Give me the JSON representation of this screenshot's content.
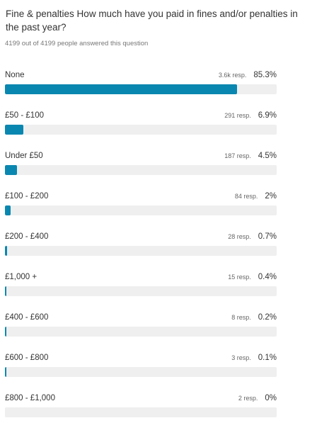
{
  "question": {
    "title": "Fine & penalties How much have you paid in fines and/or penalties in the past year?",
    "answered": "4199 out of 4199 people answered this question"
  },
  "bar_color": "#0a87b0",
  "track_color": "#efefef",
  "options": [
    {
      "label": "None",
      "responses": "3.6k resp.",
      "percent": "85.3%",
      "fraction": 0.853
    },
    {
      "label": "£50 - £100",
      "responses": "291 resp.",
      "percent": "6.9%",
      "fraction": 0.069
    },
    {
      "label": "Under £50",
      "responses": "187 resp.",
      "percent": "4.5%",
      "fraction": 0.045
    },
    {
      "label": "£100 - £200",
      "responses": "84 resp.",
      "percent": "2%",
      "fraction": 0.02
    },
    {
      "label": "£200 - £400",
      "responses": "28 resp.",
      "percent": "0.7%",
      "fraction": 0.007
    },
    {
      "label": "£1,000 +",
      "responses": "15 resp.",
      "percent": "0.4%",
      "fraction": 0.004
    },
    {
      "label": "£400 - £600",
      "responses": "8 resp.",
      "percent": "0.2%",
      "fraction": 0.002
    },
    {
      "label": "£600 - £800",
      "responses": "3 resp.",
      "percent": "0.1%",
      "fraction": 0.001
    },
    {
      "label": "£800 - £1,000",
      "responses": "2 resp.",
      "percent": "0%",
      "fraction": 0.0
    }
  ]
}
